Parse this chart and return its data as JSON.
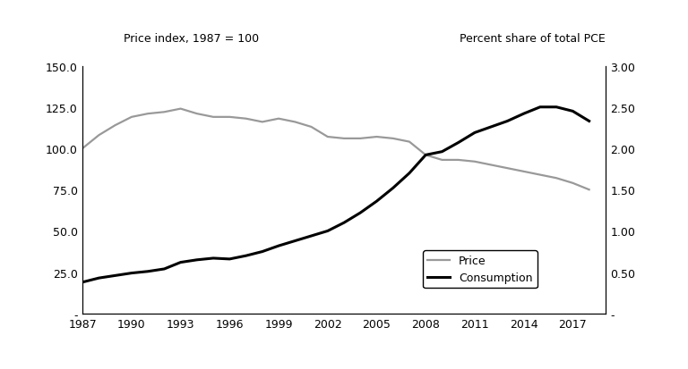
{
  "years": [
    1987,
    1988,
    1989,
    1990,
    1991,
    1992,
    1993,
    1994,
    1995,
    1996,
    1997,
    1998,
    1999,
    2000,
    2001,
    2002,
    2003,
    2004,
    2005,
    2006,
    2007,
    2008,
    2009,
    2010,
    2011,
    2012,
    2013,
    2014,
    2015,
    2016,
    2017,
    2018
  ],
  "price": [
    100.0,
    108.0,
    114.0,
    119.0,
    121.0,
    122.0,
    124.0,
    121.0,
    119.0,
    119.0,
    118.0,
    116.0,
    118.0,
    116.0,
    113.0,
    107.0,
    106.0,
    106.0,
    107.0,
    106.0,
    104.0,
    96.0,
    93.0,
    93.0,
    92.0,
    90.0,
    88.0,
    86.0,
    84.0,
    82.0,
    79.0,
    75.0
  ],
  "consumption": [
    0.38,
    0.43,
    0.46,
    0.49,
    0.51,
    0.54,
    0.62,
    0.65,
    0.67,
    0.66,
    0.7,
    0.75,
    0.82,
    0.88,
    0.94,
    1.0,
    1.1,
    1.22,
    1.36,
    1.52,
    1.7,
    1.92,
    1.96,
    2.07,
    2.19,
    2.26,
    2.33,
    2.42,
    2.5,
    2.5,
    2.45,
    2.33
  ],
  "left_ylabel": "Price index, 1987 = 100",
  "right_ylabel": "Percent share of total PCE",
  "left_ylim": [
    0,
    150.0
  ],
  "right_ylim": [
    0,
    3.0
  ],
  "left_yticks": [
    0,
    25.0,
    50.0,
    75.0,
    100.0,
    125.0,
    150.0
  ],
  "right_yticks": [
    0,
    0.5,
    1.0,
    1.5,
    2.0,
    2.5,
    3.0
  ],
  "left_yticklabels": [
    "-",
    "25.0",
    "50.0",
    "75.0",
    "100.0",
    "125.0",
    "150.0"
  ],
  "right_yticklabels": [
    "-",
    "0.50",
    "1.00",
    "1.50",
    "2.00",
    "2.50",
    "3.00"
  ],
  "xtick_years": [
    1987,
    1990,
    1993,
    1996,
    1999,
    2002,
    2005,
    2008,
    2011,
    2014,
    2017
  ],
  "price_color": "#999999",
  "consumption_color": "#000000",
  "price_linewidth": 1.6,
  "consumption_linewidth": 2.2,
  "legend_labels": [
    "Price",
    "Consumption"
  ],
  "background_color": "#ffffff",
  "figure_background": "#ffffff",
  "xlim": [
    1987,
    2019
  ]
}
